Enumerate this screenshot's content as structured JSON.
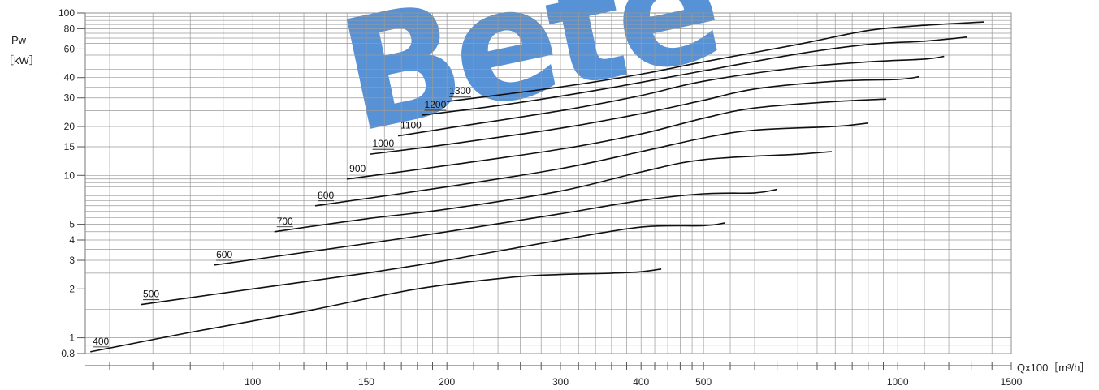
{
  "chart_data": {
    "type": "line",
    "title": "",
    "ylabel": "Pw",
    "ylabel_unit": "［kW］",
    "xlabel": "Qx100［m³/h］",
    "x_scale": "log",
    "y_scale": "log",
    "xlim": [
      55,
      1500
    ],
    "ylim": [
      0.8,
      100
    ],
    "grid": true,
    "x_ticks": [
      100,
      150,
      200,
      300,
      400,
      500,
      1000,
      1500
    ],
    "y_ticks": [
      0.8,
      1,
      2,
      3,
      4,
      5,
      10,
      15,
      20,
      30,
      40,
      60,
      80,
      100
    ],
    "series": [
      {
        "name": "400",
        "x": [
          56,
          80,
          120,
          180,
          250,
          300,
          360,
          400,
          430
        ],
        "y": [
          0.82,
          1.08,
          1.45,
          2.0,
          2.35,
          2.45,
          2.5,
          2.55,
          2.65
        ]
      },
      {
        "name": "500",
        "x": [
          67,
          100,
          150,
          200,
          300,
          400,
          500,
          540
        ],
        "y": [
          1.6,
          2.0,
          2.5,
          3.0,
          4.0,
          4.8,
          4.9,
          5.1
        ]
      },
      {
        "name": "600",
        "x": [
          87,
          150,
          200,
          300,
          400,
          500,
          600,
          650
        ],
        "y": [
          2.8,
          3.8,
          4.5,
          5.8,
          7.0,
          7.7,
          7.8,
          8.2
        ]
      },
      {
        "name": "700",
        "x": [
          108,
          150,
          200,
          300,
          400,
          500,
          700,
          790
        ],
        "y": [
          4.5,
          5.4,
          6.2,
          8.0,
          10.5,
          12.5,
          13.5,
          14.0
        ]
      },
      {
        "name": "800",
        "x": [
          125,
          200,
          300,
          400,
          500,
          600,
          800,
          900
        ],
        "y": [
          6.5,
          8.5,
          11.0,
          14.0,
          17.0,
          19.0,
          20.0,
          21.0
        ]
      },
      {
        "name": "900",
        "x": [
          140,
          200,
          300,
          400,
          500,
          600,
          800,
          960
        ],
        "y": [
          9.5,
          11.5,
          14.5,
          18.0,
          22.5,
          26.0,
          28.5,
          29.5
        ]
      },
      {
        "name": "1000",
        "x": [
          152,
          200,
          300,
          400,
          500,
          600,
          800,
          1000,
          1080
        ],
        "y": [
          13.5,
          15.5,
          19.5,
          24.0,
          29.0,
          34.0,
          38.0,
          39.0,
          40.5
        ]
      },
      {
        "name": "1100",
        "x": [
          168,
          200,
          300,
          400,
          500,
          700,
          900,
          1100,
          1180
        ],
        "y": [
          17.5,
          19.5,
          25.0,
          31.0,
          38.0,
          46.0,
          50.0,
          52.0,
          54.0
        ]
      },
      {
        "name": "1200",
        "x": [
          183,
          250,
          350,
          500,
          700,
          900,
          1100,
          1280
        ],
        "y": [
          23.5,
          27.5,
          34.0,
          44.0,
          56.0,
          64.0,
          67.0,
          71.0
        ]
      },
      {
        "name": "1300",
        "x": [
          200,
          300,
          400,
          500,
          700,
          900,
          1100,
          1360
        ],
        "y": [
          28.5,
          35.0,
          42.0,
          50.0,
          64.0,
          78.0,
          84.0,
          88.0
        ]
      }
    ],
    "label_positions_x": [
      56,
      67,
      87,
      108,
      125,
      140,
      152,
      168,
      183,
      200
    ]
  }
}
